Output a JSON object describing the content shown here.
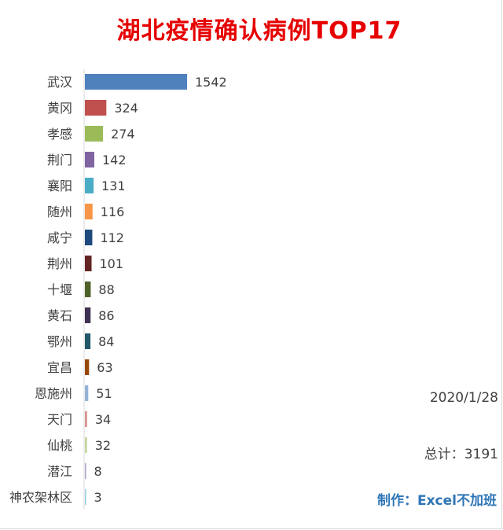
{
  "chart_data": {
    "type": "bar",
    "orientation": "horizontal",
    "title": "湖北疫情确认病例TOP17",
    "categories": [
      "武汉",
      "黄冈",
      "孝感",
      "荆门",
      "襄阳",
      "随州",
      "咸宁",
      "荆州",
      "十堰",
      "黄石",
      "鄂州",
      "宜昌",
      "恩施州",
      "天门",
      "仙桃",
      "潜江",
      "神农架林区"
    ],
    "values": [
      1542,
      324,
      274,
      142,
      131,
      116,
      112,
      101,
      88,
      86,
      84,
      63,
      51,
      34,
      32,
      8,
      3
    ],
    "colors": [
      "#4f81bd",
      "#c0504d",
      "#9bbb59",
      "#8064a2",
      "#4bacc6",
      "#f79646",
      "#1f497d",
      "#632423",
      "#4f6228",
      "#3f3151",
      "#215967",
      "#974706",
      "#95b3d7",
      "#d99694",
      "#c3d69b",
      "#b2a1c7",
      "#93cddd"
    ],
    "data_labels": true,
    "grid": false,
    "legend": "none"
  },
  "notes": {
    "date": "2020/1/28",
    "total_label": "总计：",
    "total_value": "3191",
    "credit": "制作：Excel不加班"
  }
}
